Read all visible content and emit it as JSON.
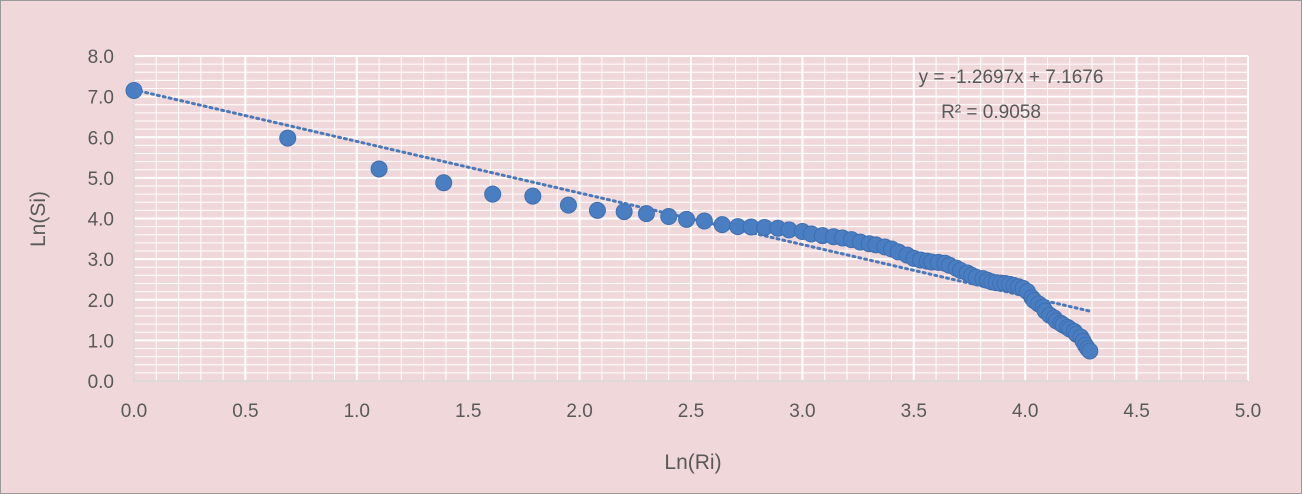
{
  "chart_data": {
    "type": "scatter",
    "title": "",
    "xlabel": "Ln(Ri)",
    "ylabel": "Ln(Si)",
    "xlim": [
      0,
      5
    ],
    "ylim": [
      0,
      8
    ],
    "x_ticks": [
      "0.0",
      "0.5",
      "1.0",
      "1.5",
      "2.0",
      "2.5",
      "3.0",
      "3.5",
      "4.0",
      "4.5",
      "5.0"
    ],
    "y_ticks": [
      "0.0",
      "1.0",
      "2.0",
      "3.0",
      "4.0",
      "5.0",
      "6.0",
      "7.0",
      "8.0"
    ],
    "grid": true,
    "marker_color": "#4a7ec2",
    "trendline": {
      "type": "linear",
      "slope": -1.2697,
      "intercept": 7.1676,
      "x_range": [
        0,
        4.29
      ],
      "color": "#4a78b8",
      "style": "dotted",
      "equation_label": "y = -1.2697x + 7.1676",
      "r2_label": "R² = 0.9058"
    },
    "series": [
      {
        "points": [
          [
            0.0,
            7.15
          ],
          [
            0.69,
            5.98
          ],
          [
            1.1,
            5.22
          ],
          [
            1.39,
            4.88
          ],
          [
            1.61,
            4.6
          ],
          [
            1.79,
            4.55
          ],
          [
            1.95,
            4.33
          ],
          [
            2.08,
            4.2
          ],
          [
            2.2,
            4.17
          ],
          [
            2.3,
            4.12
          ],
          [
            2.4,
            4.05
          ],
          [
            2.48,
            3.98
          ],
          [
            2.56,
            3.94
          ],
          [
            2.64,
            3.85
          ],
          [
            2.71,
            3.8
          ],
          [
            2.77,
            3.79
          ],
          [
            2.83,
            3.78
          ],
          [
            2.89,
            3.76
          ],
          [
            2.94,
            3.72
          ],
          [
            3.0,
            3.68
          ],
          [
            3.04,
            3.62
          ],
          [
            3.09,
            3.58
          ],
          [
            3.14,
            3.55
          ],
          [
            3.18,
            3.52
          ],
          [
            3.22,
            3.48
          ],
          [
            3.26,
            3.42
          ],
          [
            3.3,
            3.38
          ],
          [
            3.33,
            3.35
          ],
          [
            3.37,
            3.3
          ],
          [
            3.4,
            3.25
          ],
          [
            3.43,
            3.18
          ],
          [
            3.47,
            3.1
          ],
          [
            3.5,
            3.02
          ],
          [
            3.53,
            2.98
          ],
          [
            3.56,
            2.95
          ],
          [
            3.58,
            2.93
          ],
          [
            3.61,
            2.92
          ],
          [
            3.64,
            2.9
          ],
          [
            3.66,
            2.85
          ],
          [
            3.69,
            2.78
          ],
          [
            3.71,
            2.72
          ],
          [
            3.74,
            2.66
          ],
          [
            3.76,
            2.6
          ],
          [
            3.78,
            2.55
          ],
          [
            3.81,
            2.52
          ],
          [
            3.83,
            2.48
          ],
          [
            3.85,
            2.44
          ],
          [
            3.87,
            2.42
          ],
          [
            3.89,
            2.41
          ],
          [
            3.91,
            2.4
          ],
          [
            3.93,
            2.38
          ],
          [
            3.95,
            2.35
          ],
          [
            3.97,
            2.32
          ],
          [
            3.99,
            2.28
          ],
          [
            4.01,
            2.2
          ],
          [
            4.03,
            2.05
          ],
          [
            4.04,
            1.98
          ],
          [
            4.06,
            1.9
          ],
          [
            4.08,
            1.82
          ],
          [
            4.09,
            1.72
          ],
          [
            4.11,
            1.62
          ],
          [
            4.13,
            1.55
          ],
          [
            4.14,
            1.48
          ],
          [
            4.16,
            1.42
          ],
          [
            4.17,
            1.38
          ],
          [
            4.19,
            1.32
          ],
          [
            4.2,
            1.28
          ],
          [
            4.22,
            1.22
          ],
          [
            4.23,
            1.15
          ],
          [
            4.25,
            1.08
          ],
          [
            4.26,
            0.98
          ],
          [
            4.27,
            0.88
          ],
          [
            4.28,
            0.8
          ],
          [
            4.29,
            0.74
          ]
        ]
      }
    ]
  }
}
